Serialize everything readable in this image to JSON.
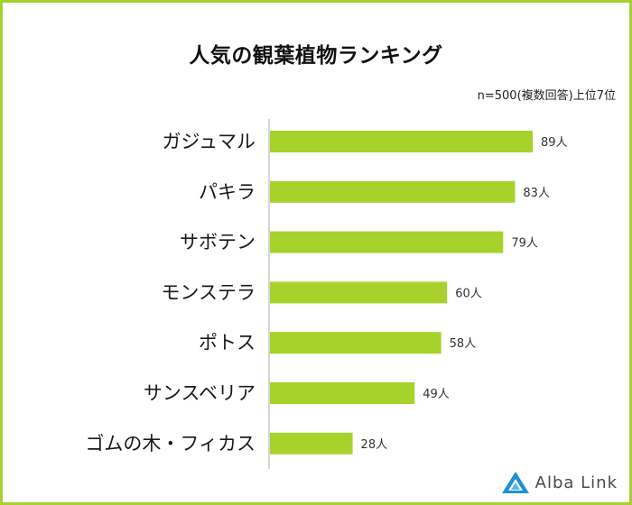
{
  "title": "人気の観葉植物ランキング",
  "note": "n=500(複数回答)上位7位",
  "logo_text": "Alba Link",
  "colors": {
    "bar": "#a6d22b",
    "border": "#a6d02c",
    "axis": "#c8c8c8",
    "logo_blue": "#1e8fd8"
  },
  "value_unit": "人",
  "chart_data": {
    "type": "bar",
    "orientation": "horizontal",
    "title": "人気の観葉植物ランキング",
    "categories": [
      "ガジュマル",
      "パキラ",
      "サボテン",
      "モンステラ",
      "ポトス",
      "サンスベリア",
      "ゴムの木・フィカス"
    ],
    "values": [
      89,
      83,
      79,
      60,
      58,
      49,
      28
    ],
    "data_labels": [
      "89人",
      "83人",
      "79人",
      "60人",
      "58人",
      "49人",
      "28人"
    ],
    "xlim": [
      0,
      100
    ],
    "grid": false
  }
}
